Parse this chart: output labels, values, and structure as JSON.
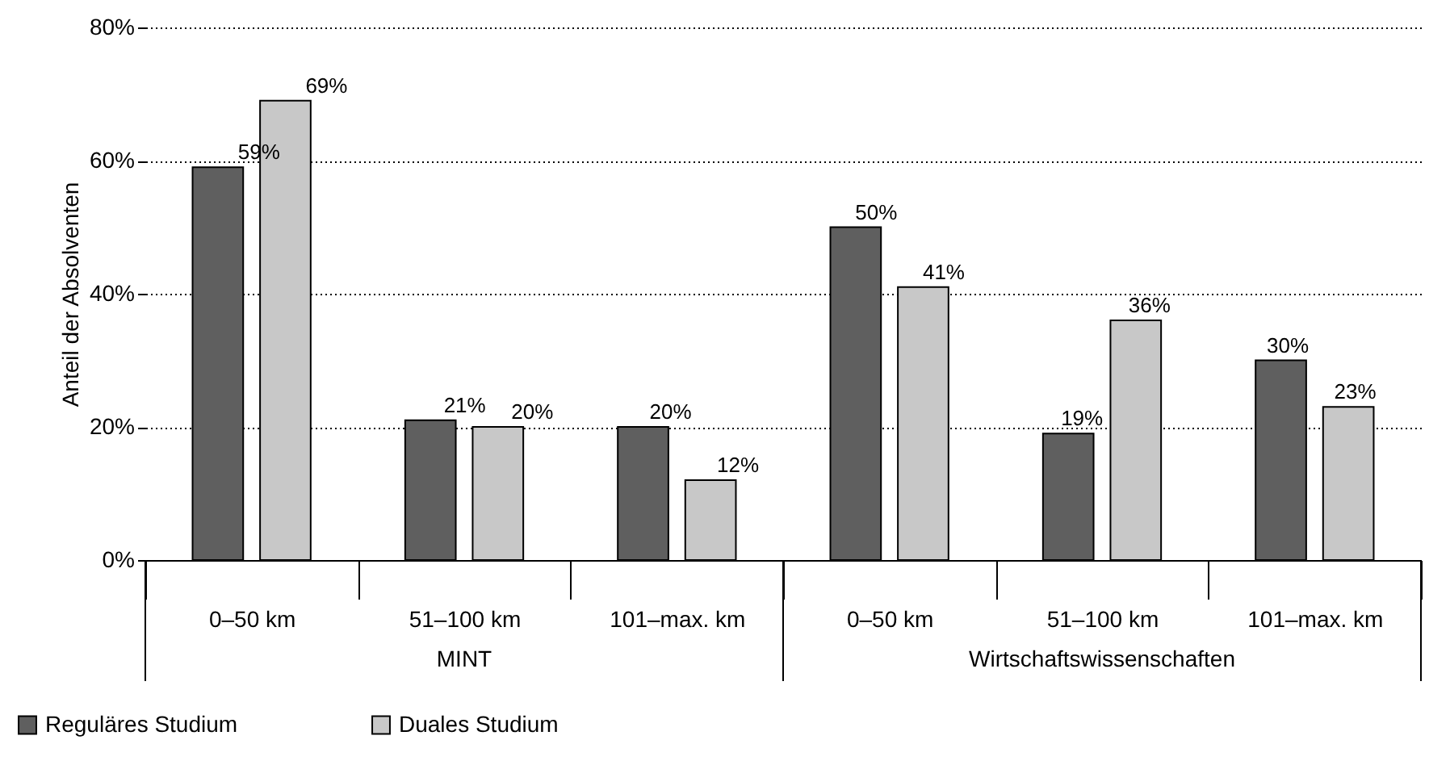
{
  "chart_data": {
    "type": "bar",
    "ylabel": "Anteil der Absolventen",
    "categories": [
      "0–50 km",
      "51–100 km",
      "101–max. km",
      "0–50 km",
      "51–100 km",
      "101–max. km"
    ],
    "series": [
      {
        "name": "Reguläres Studium",
        "color": "#5f5f5f",
        "values": [
          59,
          21,
          20,
          50,
          19,
          30
        ],
        "value_labels": [
          "59%",
          "21%",
          "20%",
          "50%",
          "19%",
          "30%"
        ]
      },
      {
        "name": "Duales Studium",
        "color": "#c8c8c8",
        "values": [
          69,
          20,
          12,
          41,
          36,
          23
        ],
        "value_labels": [
          "69%",
          "20%",
          "12%",
          "41%",
          "36%",
          "23%"
        ]
      }
    ],
    "annotations": [
      "MINT",
      "Wirtschaftswissenschaften"
    ],
    "ylim": [
      0,
      80
    ],
    "yticks": [
      {
        "value": 0,
        "label": "0%"
      },
      {
        "value": 20,
        "label": "20%"
      },
      {
        "value": 40,
        "label": "40%"
      },
      {
        "value": 60,
        "label": "60%"
      },
      {
        "value": 80,
        "label": "80%"
      }
    ],
    "grid": "y",
    "legend": "bottom left"
  }
}
